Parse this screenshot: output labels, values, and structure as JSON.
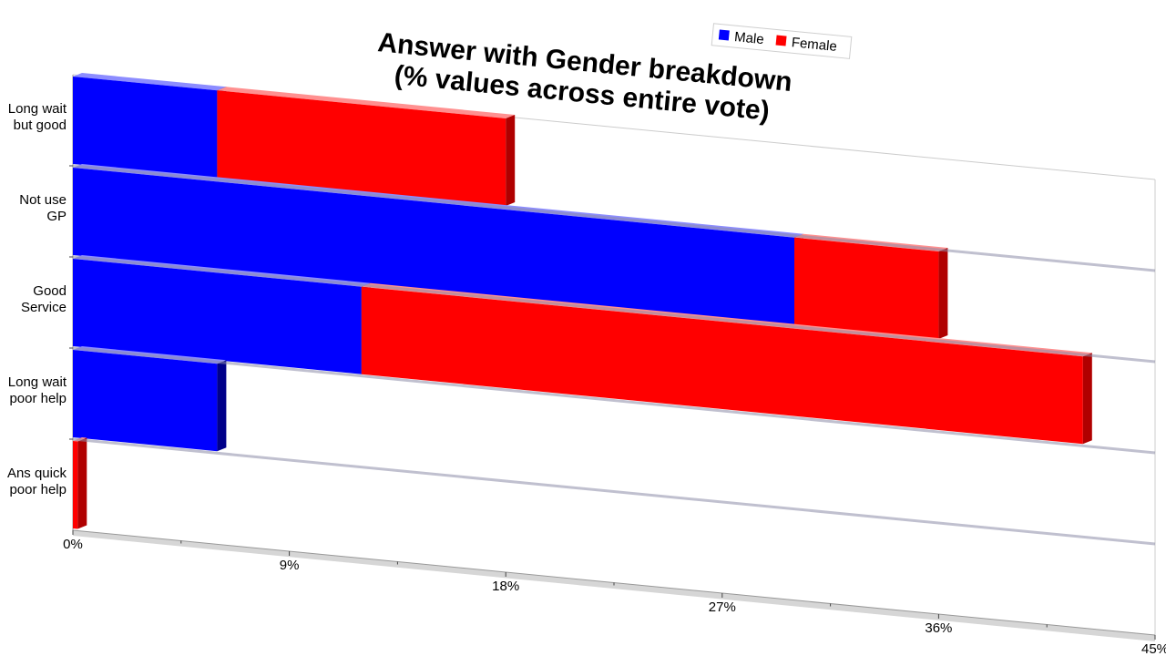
{
  "chart_data": {
    "type": "bar",
    "orientation": "horizontal",
    "stacked": true,
    "title": "Answer with Gender breakdown",
    "subtitle": "(% values across entire vote)",
    "categories": [
      "Long wait but good",
      "Not use GP",
      "Good Service",
      "Long wait poor help",
      "Ans quick poor help"
    ],
    "category_lines": [
      [
        "Long wait",
        "but good"
      ],
      [
        "Not use",
        "GP"
      ],
      [
        "Good",
        "Service"
      ],
      [
        "Long wait",
        "poor help"
      ],
      [
        "Ans quick",
        "poor help"
      ]
    ],
    "series": [
      {
        "name": "Male",
        "color": "#0000ff",
        "values": [
          6,
          30,
          12,
          6,
          0
        ]
      },
      {
        "name": "Female",
        "color": "#ff0000",
        "values": [
          12,
          6,
          30,
          0,
          0.2
        ]
      }
    ],
    "xlim": [
      0,
      45
    ],
    "ticks": [
      0,
      9,
      18,
      27,
      36,
      45
    ],
    "tick_labels": [
      "0%",
      "9%",
      "18%",
      "27%",
      "36%",
      "45%"
    ],
    "legend_position": "top-right",
    "view": "3d-perspective"
  }
}
